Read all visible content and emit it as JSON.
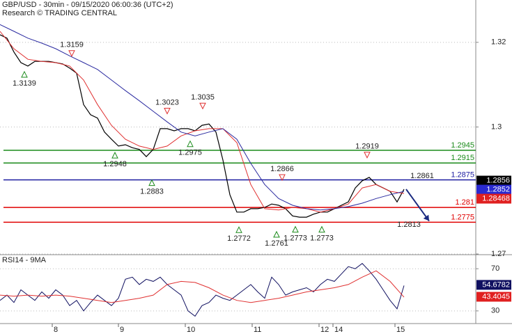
{
  "chart_data": [
    {
      "type": "line",
      "title": "GBP/USD - 30min - 09/15/2020 06:00:36 (UTC+2)",
      "subtitle": "Research © TRADING CENTRAL",
      "xlim": [
        0,
        341.5
      ],
      "ylim": [
        1.27,
        1.33
      ],
      "yticks": [
        1.27,
        1.3,
        1.32
      ],
      "series": [
        {
          "color": "#000000",
          "x": [
            0,
            5,
            10,
            15,
            20,
            25,
            30,
            35,
            40,
            45,
            50,
            55,
            60,
            65,
            70,
            75,
            80,
            85,
            90,
            95,
            100,
            105,
            110,
            115,
            120,
            125,
            130,
            135,
            140,
            145,
            150,
            155,
            160,
            165,
            170,
            175,
            180,
            185,
            190,
            195,
            200,
            205,
            210,
            215,
            220,
            225,
            230,
            235,
            240,
            245,
            250,
            255,
            260,
            265,
            270,
            275,
            280,
            285,
            290
          ],
          "values": [
            1.3218,
            1.321,
            1.3177,
            1.3152,
            1.3144,
            1.3155,
            1.3155,
            1.3155,
            1.3152,
            1.3149,
            1.3139,
            1.3127,
            1.3053,
            1.3029,
            1.3021,
            1.2988,
            1.2971,
            1.2955,
            1.2958,
            1.2951,
            1.2947,
            1.293,
            1.2947,
            1.2996,
            1.2996,
            1.2991,
            1.2996,
            1.2996,
            1.2991,
            1.3004,
            1.3007,
            1.2988,
            1.2922,
            1.284,
            1.2799,
            1.2799,
            1.2807,
            1.2807,
            1.281,
            1.2818,
            1.2815,
            1.2807,
            1.279,
            1.2787,
            1.2787,
            1.2794,
            1.2799,
            1.2799,
            1.2807,
            1.2815,
            1.2823,
            1.2856,
            1.2873,
            1.2881,
            1.2864,
            1.2856,
            1.2848,
            1.2823,
            1.2853
          ]
        },
        {
          "color": "#e03030",
          "x": [
            0,
            10,
            20,
            30,
            40,
            50,
            60,
            70,
            80,
            90,
            100,
            110,
            120,
            130,
            140,
            150,
            160,
            170,
            180,
            190,
            200,
            210,
            220,
            230,
            240,
            250,
            260,
            270,
            280,
            290
          ],
          "values": [
            1.3226,
            1.3185,
            1.316,
            1.3155,
            1.3152,
            1.3144,
            1.3111,
            1.3053,
            1.3004,
            1.2971,
            1.2955,
            1.2947,
            1.2955,
            1.2979,
            1.2991,
            1.2996,
            1.2996,
            1.2963,
            1.2864,
            1.2807,
            1.2804,
            1.281,
            1.2807,
            1.2799,
            1.2807,
            1.2818,
            1.2856,
            1.2864,
            1.2848,
            1.2843
          ]
        },
        {
          "color": "#2a2aa0",
          "x": [
            0,
            10,
            20,
            30,
            40,
            50,
            60,
            70,
            80,
            90,
            100,
            110,
            120,
            130,
            140,
            150,
            160,
            170,
            180,
            190,
            200,
            210,
            220,
            230,
            240,
            250,
            260,
            270,
            280,
            290
          ],
          "values": [
            1.3242,
            1.3226,
            1.321,
            1.3198,
            1.3185,
            1.3168,
            1.3152,
            1.3136,
            1.3111,
            1.3086,
            1.3062,
            1.3037,
            1.3012,
            1.2988,
            1.2979,
            1.2988,
            1.2996,
            1.2971,
            1.2914,
            1.2864,
            1.2831,
            1.2815,
            1.2807,
            1.2804,
            1.2807,
            1.2812,
            1.282,
            1.2831,
            1.284,
            1.2848
          ]
        }
      ],
      "levels": [
        {
          "value": 1.2945,
          "color": "#1a8a1a"
        },
        {
          "value": 1.2915,
          "color": "#1a8a1a"
        },
        {
          "value": 1.2875,
          "color": "#1a1aa0"
        },
        {
          "value": 1.281,
          "color": "#e00000"
        },
        {
          "value": 1.2775,
          "color": "#e00000"
        }
      ],
      "annotations": [
        {
          "x": 17.5,
          "value": 1.3139,
          "kind": "up"
        },
        {
          "x": 51.5,
          "value": 1.3159,
          "kind": "down"
        },
        {
          "x": 82.5,
          "value": 1.2948,
          "kind": "up"
        },
        {
          "x": 109,
          "value": 1.2883,
          "kind": "up"
        },
        {
          "x": 120,
          "value": 1.3023,
          "kind": "down"
        },
        {
          "x": 136.5,
          "value": 1.2975,
          "kind": "up"
        },
        {
          "x": 145.5,
          "value": 1.3035,
          "kind": "down"
        },
        {
          "x": 171.5,
          "value": 1.2772,
          "kind": "up"
        },
        {
          "x": 198.5,
          "value": 1.2761,
          "kind": "up"
        },
        {
          "x": 202.5,
          "value": 1.2866,
          "kind": "down"
        },
        {
          "x": 212,
          "value": 1.2773,
          "kind": "up"
        },
        {
          "x": 231,
          "value": 1.2773,
          "kind": "up"
        },
        {
          "x": 263.5,
          "value": 1.2919,
          "kind": "down"
        },
        {
          "x": 303,
          "value": 1.2861,
          "kind": "plain-above"
        },
        {
          "x": 293.5,
          "value": 1.2813,
          "kind": "plain-below"
        }
      ],
      "projection": {
        "x": [
          291.5,
          308
        ],
        "values": [
          1.2853,
          1.2778
        ],
        "color": "#1a2a80"
      },
      "last_values": [
        {
          "value": 1.2856,
          "color": "#000000"
        },
        {
          "value": 1.2852,
          "color": "#2a2ad0"
        },
        {
          "value": 1.28468,
          "color": "#e02020"
        }
      ]
    },
    {
      "type": "line",
      "title": "RSI14 - 9MA",
      "xlim": [
        0,
        341.5
      ],
      "ylim": [
        18,
        82
      ],
      "yticks": [
        30,
        70
      ],
      "xticks": [
        {
          "value": 37.5,
          "label": "8"
        },
        {
          "value": 85,
          "label": "9"
        },
        {
          "value": 133,
          "label": "10"
        },
        {
          "value": 181,
          "label": "11"
        },
        {
          "value": 229,
          "label": "12"
        },
        {
          "value": 239,
          "label": "14"
        },
        {
          "value": 283.5,
          "label": "15"
        }
      ],
      "series": [
        {
          "color": "#101060",
          "x": [
            0,
            5,
            10,
            15,
            20,
            25,
            30,
            35,
            40,
            45,
            50,
            55,
            60,
            65,
            70,
            75,
            80,
            85,
            90,
            95,
            100,
            105,
            110,
            115,
            120,
            125,
            130,
            135,
            140,
            145,
            150,
            155,
            160,
            165,
            170,
            175,
            180,
            185,
            190,
            195,
            200,
            205,
            210,
            215,
            220,
            225,
            230,
            235,
            240,
            245,
            250,
            255,
            260,
            265,
            270,
            275,
            280,
            285,
            290
          ],
          "values": [
            40,
            45,
            38,
            50,
            45,
            40,
            48,
            42,
            50,
            45,
            35,
            40,
            30,
            38,
            45,
            40,
            35,
            42,
            60,
            62,
            55,
            60,
            58,
            62,
            55,
            50,
            45,
            30,
            25,
            35,
            38,
            45,
            42,
            40,
            45,
            50,
            55,
            48,
            42,
            62,
            55,
            45,
            48,
            50,
            52,
            48,
            55,
            60,
            58,
            65,
            72,
            70,
            75,
            68,
            60,
            50,
            40,
            32,
            54
          ]
        },
        {
          "color": "#e03030",
          "x": [
            0,
            10,
            20,
            30,
            40,
            50,
            60,
            70,
            80,
            90,
            100,
            110,
            120,
            130,
            140,
            150,
            160,
            170,
            180,
            190,
            200,
            210,
            220,
            230,
            240,
            250,
            260,
            270,
            280,
            290
          ],
          "values": [
            45,
            44,
            45,
            44,
            45,
            44,
            42,
            40,
            38,
            40,
            42,
            45,
            55,
            58,
            57,
            52,
            45,
            40,
            38,
            40,
            42,
            45,
            48,
            50,
            52,
            55,
            62,
            68,
            58,
            43
          ]
        }
      ],
      "last_values": [
        {
          "value": 54.6782,
          "color": "#101060"
        },
        {
          "value": 43.4045,
          "color": "#e02020"
        }
      ]
    }
  ]
}
